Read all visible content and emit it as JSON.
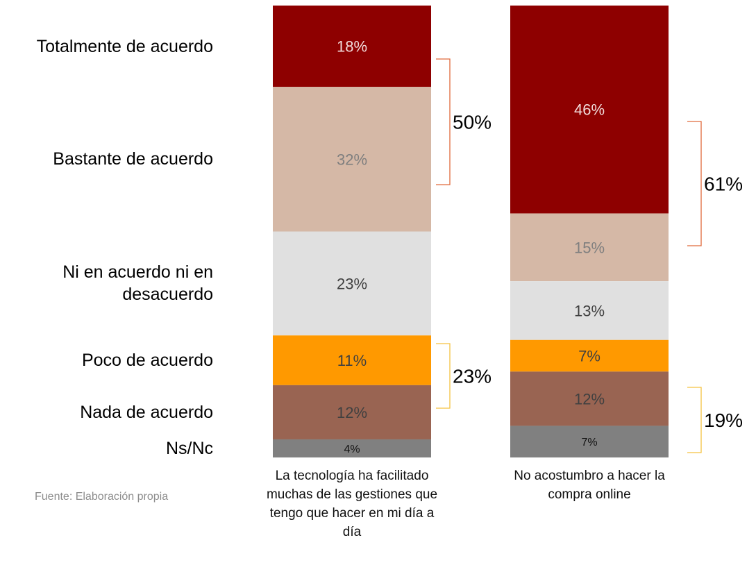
{
  "chart_data": {
    "type": "stacked_bar",
    "categories": [
      "La tecnología ha facilitado muchas de las gestiones que tengo que hacer en mi día a día",
      "No acostumbro a hacer la compra online"
    ],
    "series": [
      {
        "name": "Totalmente de acuerdo",
        "color": "#8e0000",
        "label_color": "#f2dcdb",
        "values": [
          18,
          46
        ],
        "value_labels": [
          "18%",
          "46%"
        ]
      },
      {
        "name": "Bastante de acuerdo",
        "color": "#d5b8a6",
        "label_color": "#7f7f7f",
        "values": [
          32,
          15
        ],
        "value_labels": [
          "32%",
          "15%"
        ]
      },
      {
        "name": "Ni en acuerdo ni en desacuerdo",
        "color": "#e0e0e0",
        "label_color": "#404040",
        "values": [
          23,
          13
        ],
        "value_labels": [
          "23%",
          "13%"
        ]
      },
      {
        "name": "Poco de acuerdo",
        "color": "#ff9900",
        "label_color": "#404040",
        "values": [
          11,
          7
        ],
        "value_labels": [
          "11%",
          "7%"
        ]
      },
      {
        "name": "Nada de acuerdo",
        "color": "#996452",
        "label_color": "#404040",
        "values": [
          12,
          12
        ],
        "value_labels": [
          "12%",
          "12%"
        ]
      },
      {
        "name": "Ns/Nc",
        "color": "#808080",
        "label_color": "#111111",
        "values": [
          4,
          7
        ],
        "value_labels": [
          "4%",
          "7%"
        ]
      }
    ],
    "annotations": [
      "50%",
      "23%",
      "61%",
      "19%"
    ],
    "source": "Fuente: Elaboración propia"
  }
}
